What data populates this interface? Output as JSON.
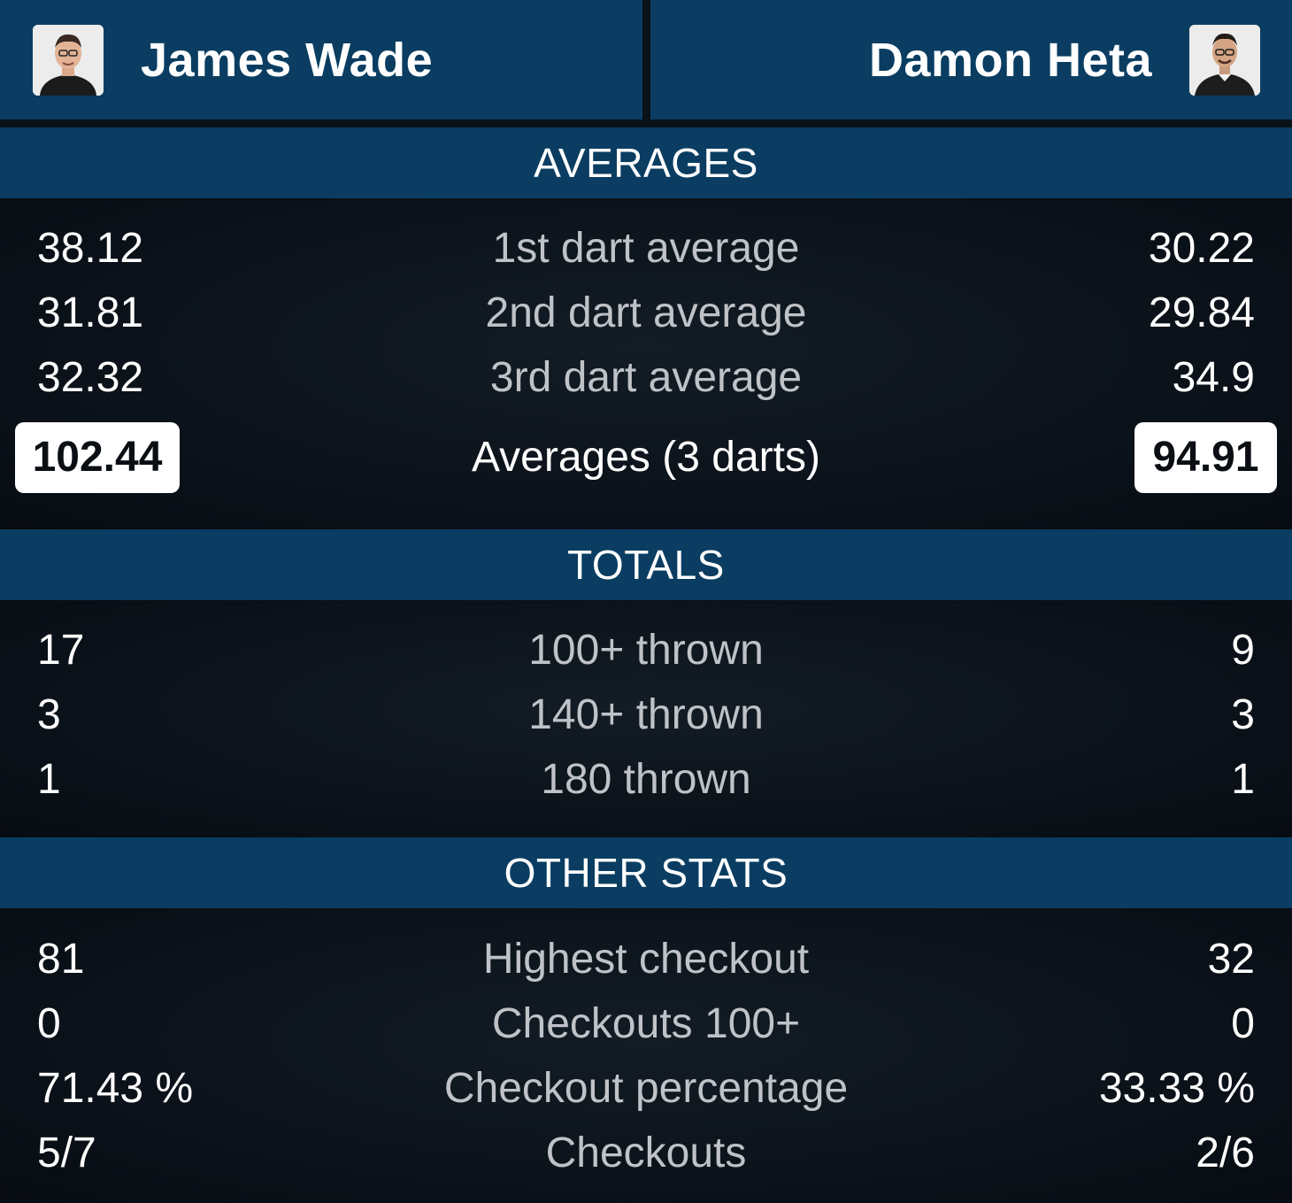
{
  "players": {
    "left": {
      "name": "James Wade"
    },
    "right": {
      "name": "Damon Heta"
    }
  },
  "sections": {
    "averages": {
      "title": "AVERAGES",
      "rows": [
        {
          "left": "38.12",
          "label": "1st dart average",
          "right": "30.22"
        },
        {
          "left": "31.81",
          "label": "2nd dart average",
          "right": "29.84"
        },
        {
          "left": "32.32",
          "label": "3rd dart average",
          "right": "34.9"
        }
      ],
      "total": {
        "left": "102.44",
        "label": "Averages (3 darts)",
        "right": "94.91"
      }
    },
    "totals": {
      "title": "TOTALS",
      "rows": [
        {
          "left": "17",
          "label": "100+ thrown",
          "right": "9"
        },
        {
          "left": "3",
          "label": "140+ thrown",
          "right": "3"
        },
        {
          "left": "1",
          "label": "180 thrown",
          "right": "1"
        }
      ]
    },
    "other": {
      "title": "OTHER STATS",
      "rows": [
        {
          "left": "81",
          "label": "Highest checkout",
          "right": "32"
        },
        {
          "left": "0",
          "label": "Checkouts 100+",
          "right": "0"
        },
        {
          "left": "71.43 %",
          "label": "Checkout percentage",
          "right": "33.33 %"
        },
        {
          "left": "5/7",
          "label": "Checkouts",
          "right": "2/6"
        }
      ]
    }
  },
  "icons": {
    "player_photo": "player-avatar-icon"
  },
  "colors": {
    "header_bg": "#0a3d61",
    "body_bg": "#0c121a",
    "label_text": "#bfc3c8",
    "value_text": "#ffffff"
  }
}
